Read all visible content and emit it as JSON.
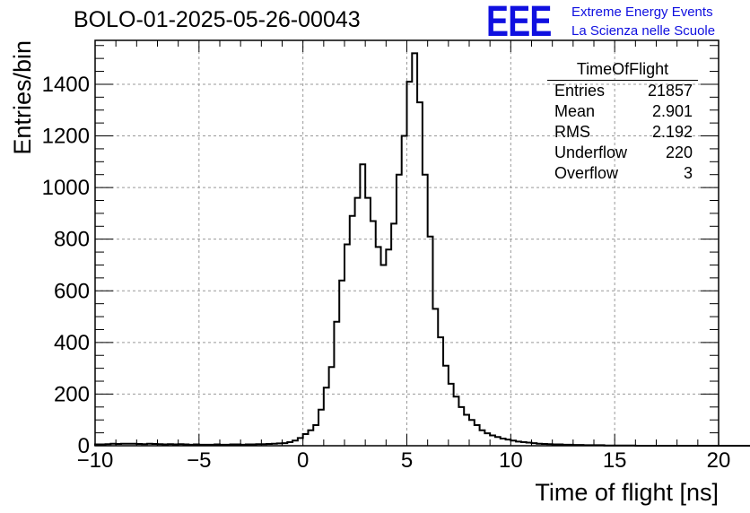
{
  "header": {
    "run_title": "BOLO-01-2025-05-26-00043",
    "logo": "EEE",
    "logo_line1": "Extreme Energy Events",
    "logo_line2": "La Scienza nelle Scuole"
  },
  "stats_box": {
    "title": "TimeOfFlight",
    "rows": [
      {
        "label": "Entries",
        "value": "21857"
      },
      {
        "label": "Mean",
        "value": "2.901"
      },
      {
        "label": "RMS",
        "value": "2.192"
      },
      {
        "label": "Underflow",
        "value": "220"
      },
      {
        "label": "Overflow",
        "value": "3"
      }
    ]
  },
  "colors": {
    "line": "#000000",
    "grid": "#999999",
    "logo": "#1010e0"
  },
  "chart_data": {
    "type": "histogram",
    "title": "BOLO-01-2025-05-26-00043",
    "xlabel": "Time of flight [ns]",
    "ylabel": "Entries/bin",
    "xlim": [
      -10,
      20
    ],
    "ylim": [
      0,
      1570
    ],
    "x_ticks": [
      -10,
      -5,
      0,
      5,
      10,
      15,
      20
    ],
    "y_ticks": [
      0,
      200,
      400,
      600,
      800,
      1000,
      1200,
      1400
    ],
    "grid": true,
    "bin_width": 0.25,
    "bin_start": -10,
    "values": [
      5,
      5,
      6,
      8,
      7,
      8,
      8,
      8,
      7,
      6,
      8,
      7,
      6,
      5,
      6,
      5,
      6,
      5,
      4,
      5,
      4,
      4,
      4,
      5,
      4,
      4,
      5,
      5,
      4,
      5,
      5,
      6,
      6,
      7,
      8,
      9,
      10,
      14,
      20,
      30,
      45,
      60,
      80,
      140,
      225,
      305,
      480,
      640,
      780,
      890,
      960,
      1090,
      960,
      870,
      770,
      700,
      760,
      860,
      1050,
      1200,
      1410,
      1520,
      1330,
      1050,
      810,
      530,
      420,
      310,
      240,
      190,
      150,
      120,
      100,
      80,
      60,
      48,
      40,
      34,
      28,
      24,
      20,
      16,
      14,
      12,
      10,
      8,
      7,
      6,
      5,
      5,
      4,
      4,
      3,
      3,
      2,
      2,
      2,
      2,
      1,
      1,
      1,
      1,
      1,
      1,
      0,
      0,
      0,
      0,
      0,
      0,
      0,
      0,
      0,
      0,
      0,
      0,
      0,
      0,
      0,
      0,
      0,
      0,
      0,
      0,
      0,
      0,
      0,
      0
    ]
  }
}
